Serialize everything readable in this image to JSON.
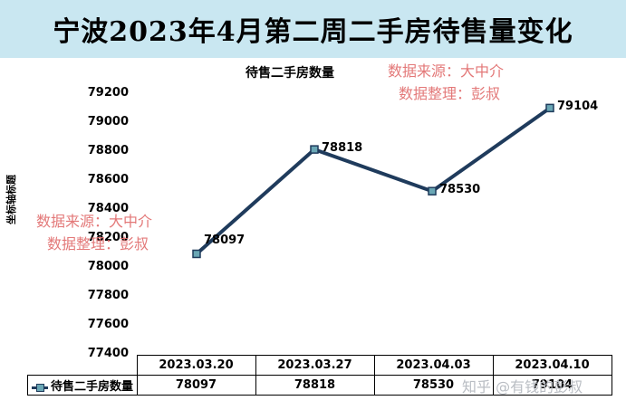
{
  "page_title": "宁波2023年4月第二周二手房待售量变化",
  "watermarks": [
    {
      "line1": "数据来源：大中介",
      "line2": "数据整理：彭叔"
    },
    {
      "line1": "数据来源：大中介",
      "line2": "数据整理：彭叔"
    }
  ],
  "zhihu_watermark": "知乎 @有钱的彭叔",
  "colors": {
    "title_bg": "#c9e7f1",
    "line": "#1f3b5c",
    "marker_fill": "#6aa7b5",
    "watermark": "#e06a6a"
  },
  "chart_data": {
    "type": "line",
    "title": "待售二手房数量",
    "xlabel": "",
    "ylabel": "坐标轴标题",
    "categories": [
      "2023.03.20",
      "2023.03.27",
      "2023.04.03",
      "2023.04.10"
    ],
    "series": [
      {
        "name": "待售二手房数量",
        "values": [
          78097,
          78818,
          78530,
          79104
        ]
      }
    ],
    "ylim": [
      77400,
      79200
    ],
    "yticks": [
      77400,
      77600,
      77800,
      78000,
      78200,
      78400,
      78600,
      78800,
      79000,
      79200
    ],
    "data_labels": true,
    "data_table": true,
    "legend": "data-table"
  }
}
